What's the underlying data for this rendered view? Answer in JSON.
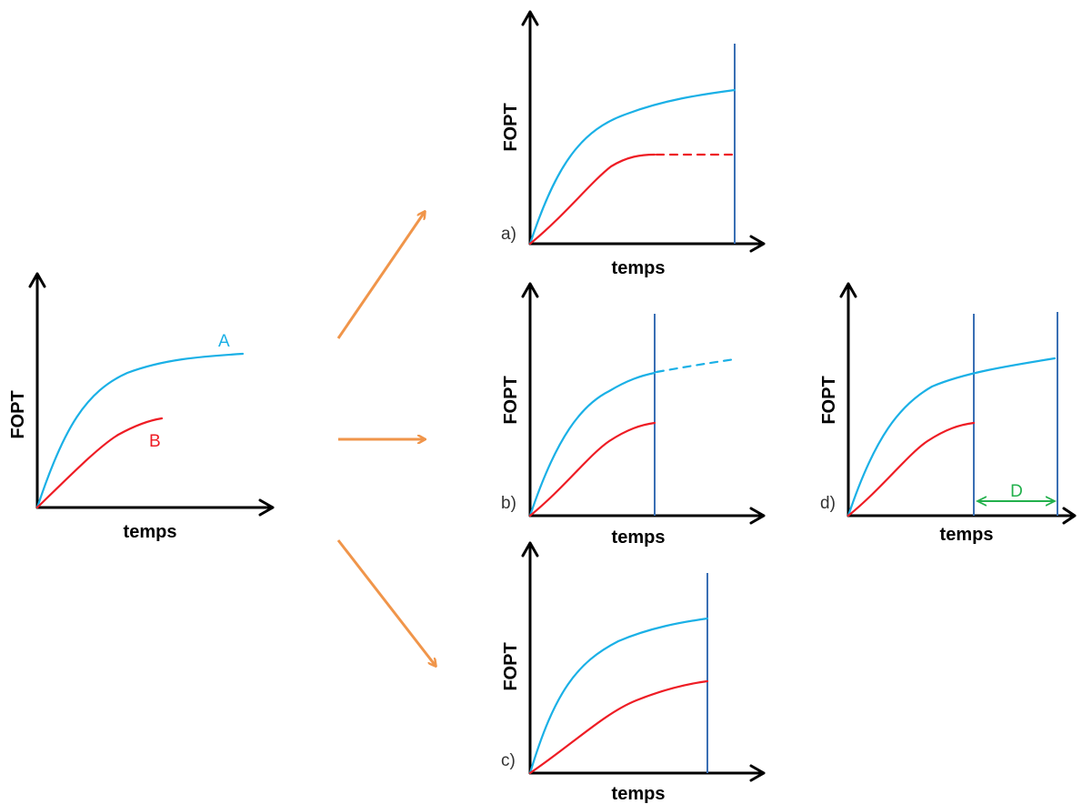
{
  "colors": {
    "curve_a": "#1ab0e6",
    "curve_b": "#ee1c24",
    "vline": "#3a6fb4",
    "arrow": "#f0954a",
    "dimension": "#22b04c",
    "axis": "#000000"
  },
  "source_plot": {
    "y_label": "FOPT",
    "x_label": "temps",
    "label_a": "A",
    "label_b": "B"
  },
  "panels": {
    "a": {
      "tag": "a)",
      "y_label": "FOPT",
      "x_label": "temps"
    },
    "b": {
      "tag": "b)",
      "y_label": "FOPT",
      "x_label": "temps"
    },
    "c": {
      "tag": "c)",
      "y_label": "FOPT",
      "x_label": "temps"
    },
    "d": {
      "tag": "d)",
      "y_label": "FOPT",
      "x_label": "temps",
      "dimension_label": "D"
    }
  }
}
